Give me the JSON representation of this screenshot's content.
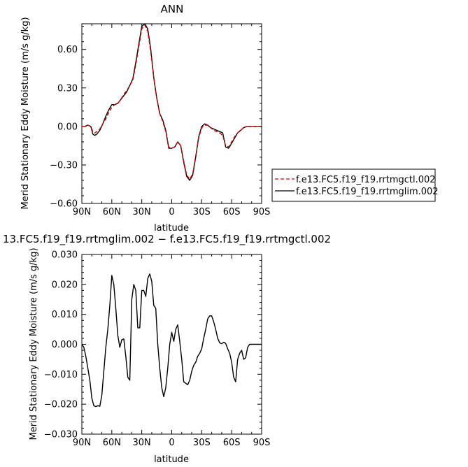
{
  "chart_data": [
    {
      "type": "line",
      "title": "ANN",
      "xlabel": "latitude",
      "ylabel": "Merid Stationary Eddy Moisture (m/s g/kg)",
      "xlim": [
        90,
        -90
      ],
      "ylim": [
        -0.6,
        0.8
      ],
      "x_ticks": [
        90,
        60,
        30,
        0,
        -30,
        -60,
        -90
      ],
      "x_tick_labels": [
        "90N",
        "60N",
        "30N",
        "0",
        "30S",
        "60S",
        "90S"
      ],
      "y_ticks": [
        -0.6,
        -0.3,
        0.0,
        0.3,
        0.6
      ],
      "y_tick_labels": [
        "−0.60",
        "−0.30",
        "0.00",
        "0.30",
        "0.60"
      ],
      "legend_position": "right",
      "series": [
        {
          "name": "f.e13.FC5.f19_f19.rrtmgctl.002",
          "color": "#cc0000",
          "dash": "dashed",
          "x": [
            90,
            87,
            84,
            81,
            79,
            77,
            75,
            72,
            69,
            66,
            63,
            60,
            57,
            54,
            51,
            48,
            45,
            42,
            39,
            36,
            33,
            30,
            27,
            24,
            21,
            18,
            15,
            12,
            9,
            6,
            3,
            0,
            -3,
            -6,
            -9,
            -12,
            -15,
            -18,
            -21,
            -24,
            -27,
            -30,
            -33,
            -36,
            -39,
            -42,
            -45,
            -48,
            -51,
            -54,
            -57,
            -60,
            -63,
            -66,
            -69,
            -72,
            -75,
            -78,
            -81,
            -84,
            -87,
            -90
          ],
          "y": [
            0.0,
            0.0,
            0.01,
            0.0,
            -0.04,
            -0.05,
            -0.04,
            -0.02,
            0.02,
            0.06,
            0.11,
            0.15,
            0.17,
            0.18,
            0.21,
            0.25,
            0.28,
            0.32,
            0.36,
            0.48,
            0.62,
            0.76,
            0.79,
            0.74,
            0.58,
            0.38,
            0.22,
            0.1,
            0.04,
            -0.04,
            -0.16,
            -0.17,
            -0.16,
            -0.12,
            -0.15,
            -0.27,
            -0.38,
            -0.41,
            -0.37,
            -0.23,
            -0.09,
            -0.01,
            0.01,
            0.01,
            -0.01,
            -0.03,
            -0.04,
            -0.05,
            -0.07,
            -0.15,
            -0.16,
            -0.12,
            -0.08,
            -0.05,
            -0.03,
            -0.01,
            0.0,
            0.0,
            0.0,
            0.0,
            0.0,
            0.0
          ]
        },
        {
          "name": "f.e13.FC5.f19_f19.rrtmglim.002",
          "color": "#000000",
          "dash": "solid",
          "x": [
            90,
            87,
            84,
            81,
            79,
            77,
            75,
            72,
            69,
            66,
            63,
            60,
            57,
            54,
            51,
            48,
            45,
            42,
            39,
            36,
            33,
            30,
            27,
            24,
            21,
            18,
            15,
            12,
            9,
            6,
            3,
            0,
            -3,
            -6,
            -9,
            -12,
            -15,
            -18,
            -21,
            -24,
            -27,
            -30,
            -33,
            -36,
            -39,
            -42,
            -45,
            -48,
            -51,
            -54,
            -57,
            -60,
            -63,
            -66,
            -69,
            -72,
            -75,
            -78,
            -81,
            -84,
            -87,
            -90
          ],
          "y": [
            0.0,
            0.0,
            0.01,
            0.0,
            -0.06,
            -0.07,
            -0.06,
            -0.03,
            0.02,
            0.08,
            0.13,
            0.17,
            0.17,
            0.18,
            0.21,
            0.24,
            0.27,
            0.32,
            0.37,
            0.5,
            0.64,
            0.78,
            0.8,
            0.76,
            0.6,
            0.38,
            0.22,
            0.1,
            0.05,
            -0.03,
            -0.17,
            -0.17,
            -0.16,
            -0.12,
            -0.15,
            -0.28,
            -0.39,
            -0.42,
            -0.38,
            -0.24,
            -0.08,
            0.0,
            0.02,
            0.01,
            -0.01,
            -0.02,
            -0.03,
            -0.04,
            -0.05,
            -0.16,
            -0.17,
            -0.13,
            -0.09,
            -0.05,
            -0.03,
            -0.01,
            0.0,
            0.0,
            0.0,
            0.0,
            0.0,
            0.0
          ]
        }
      ]
    },
    {
      "type": "line",
      "title": "13.FC5.f19_f19.rrtmglim.002 − f.e13.FC5.f19_f19.rrtmgctl.002",
      "xlabel": "latitude",
      "ylabel": "Merid Stationary Eddy Moisture (m/s g/kg)",
      "xlim": [
        90,
        -90
      ],
      "ylim": [
        -0.03,
        0.03
      ],
      "x_ticks": [
        90,
        60,
        30,
        0,
        -30,
        -60,
        -90
      ],
      "x_tick_labels": [
        "90N",
        "60N",
        "30N",
        "0",
        "30S",
        "60S",
        "90S"
      ],
      "y_ticks": [
        -0.03,
        -0.02,
        -0.01,
        0.0,
        0.01,
        0.02,
        0.03
      ],
      "y_tick_labels": [
        "−0.030",
        "−0.020",
        "−0.010",
        "0.000",
        "0.010",
        "0.020",
        "0.030"
      ],
      "series": [
        {
          "color": "#000000",
          "dash": "solid",
          "x": [
            90,
            88,
            86,
            84,
            82,
            80,
            78,
            76,
            74,
            72,
            70,
            68,
            66,
            64,
            62,
            60,
            58,
            56,
            54,
            52,
            50,
            48,
            46,
            44,
            42,
            40,
            38,
            36,
            34,
            32,
            30,
            28,
            26,
            24,
            22,
            20,
            18,
            16,
            14,
            12,
            10,
            8,
            6,
            4,
            2,
            0,
            -2,
            -4,
            -6,
            -8,
            -10,
            -12,
            -14,
            -16,
            -18,
            -20,
            -22,
            -24,
            -26,
            -28,
            -30,
            -32,
            -34,
            -36,
            -38,
            -40,
            -42,
            -44,
            -46,
            -48,
            -50,
            -52,
            -54,
            -56,
            -58,
            -60,
            -62,
            -64,
            -66,
            -68,
            -70,
            -72,
            -74,
            -76,
            -78,
            -80,
            -82,
            -84,
            -86,
            -88,
            -90
          ],
          "y": [
            0.0,
            -0.001,
            -0.004,
            -0.008,
            -0.012,
            -0.018,
            -0.0205,
            -0.0208,
            -0.0205,
            -0.0207,
            -0.017,
            -0.009,
            -0.001,
            0.005,
            0.013,
            0.023,
            0.02,
            0.012,
            0.003,
            -0.001,
            0.0015,
            0.0018,
            -0.004,
            -0.011,
            -0.012,
            0.015,
            0.02,
            0.018,
            0.0055,
            0.0055,
            0.018,
            0.018,
            0.016,
            0.022,
            0.0235,
            0.021,
            0.013,
            0.012,
            0.0,
            -0.008,
            -0.0145,
            -0.0175,
            -0.0145,
            -0.008,
            0.0,
            0.004,
            0.001,
            0.005,
            0.0065,
            0.001,
            -0.005,
            -0.0125,
            -0.013,
            -0.0135,
            -0.012,
            -0.009,
            -0.007,
            -0.006,
            -0.004,
            -0.003,
            -0.0015,
            0.002,
            0.005,
            0.0085,
            0.0095,
            0.0095,
            0.0075,
            0.005,
            0.002,
            0.0005,
            0.0002,
            0.0007,
            0.0003,
            -0.0015,
            -0.003,
            -0.006,
            -0.011,
            -0.0125,
            -0.005,
            -0.003,
            -0.002,
            -0.005,
            -0.0045,
            -0.001,
            0.0,
            0.0,
            0.0,
            0.0,
            0.0,
            0.0,
            0.0
          ]
        }
      ]
    }
  ]
}
